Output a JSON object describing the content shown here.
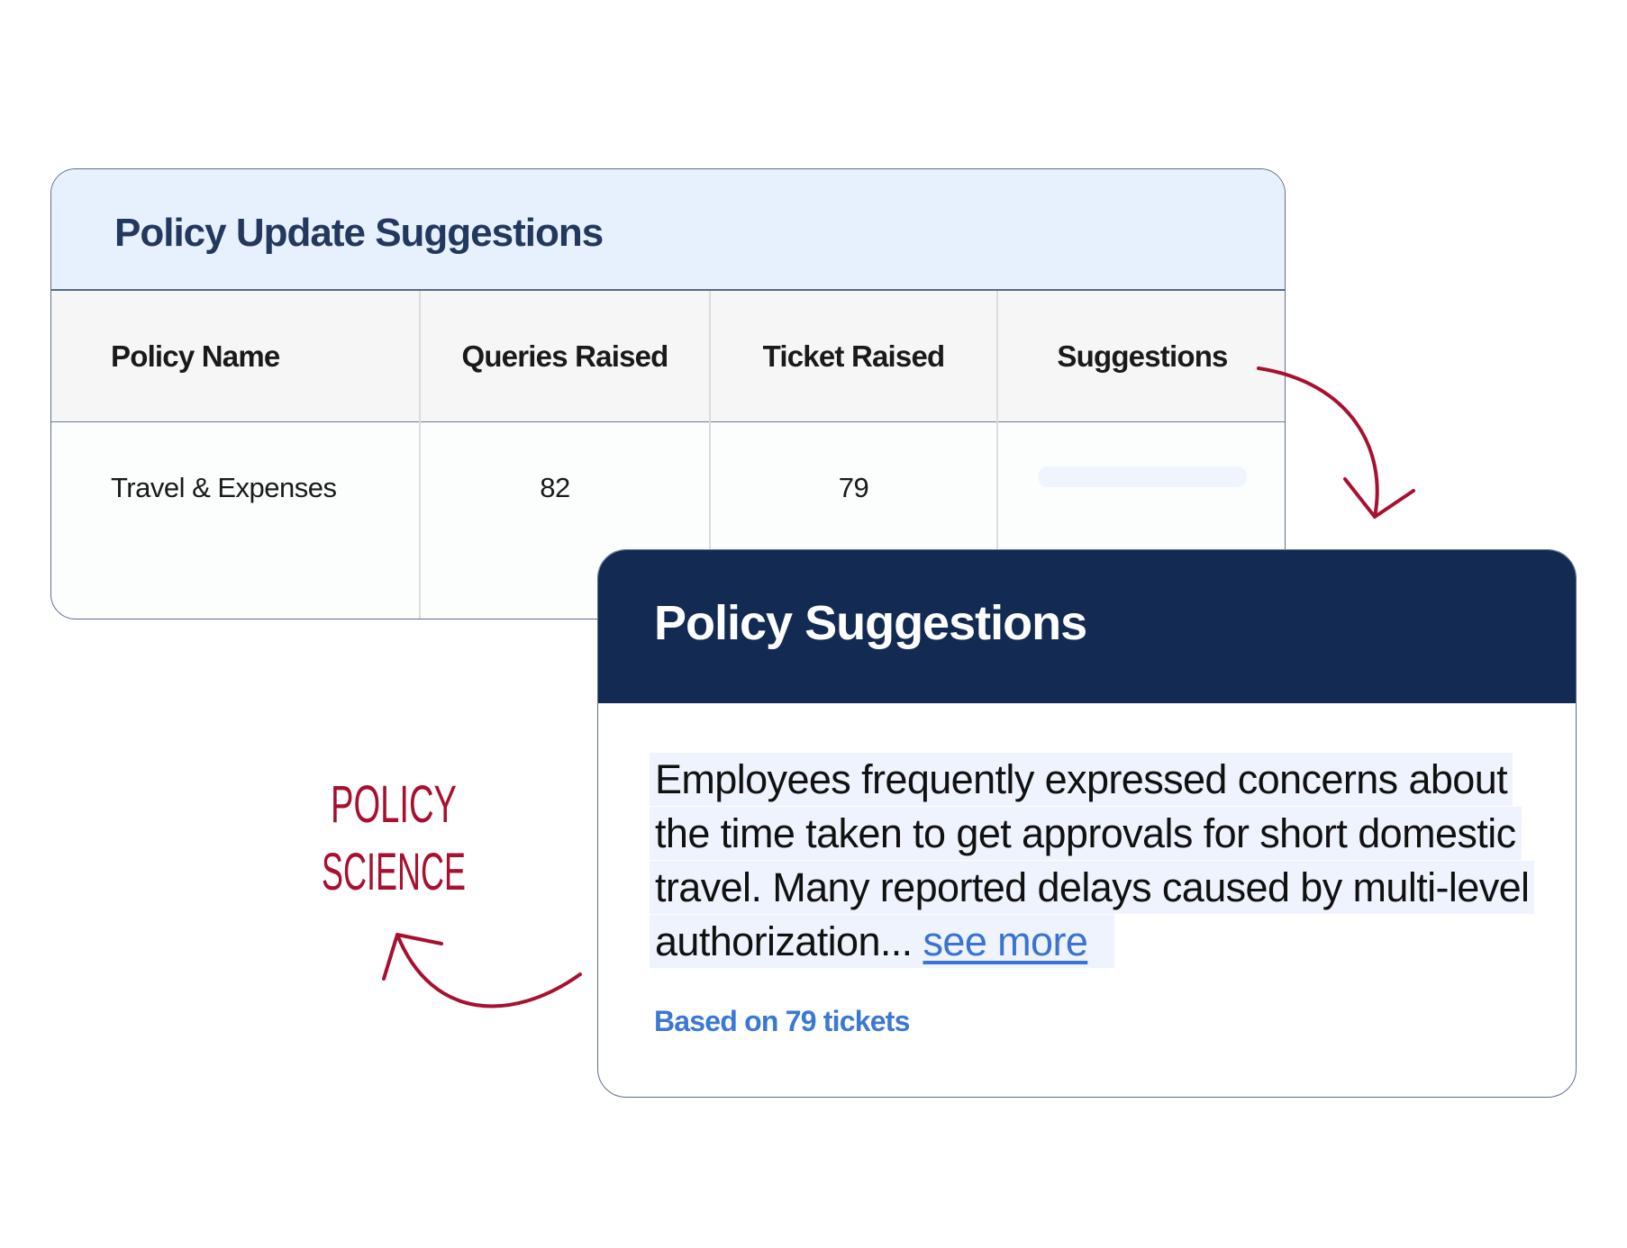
{
  "policy_table": {
    "title": "Policy Update Suggestions",
    "columns": [
      "Policy Name",
      "Queries Raised",
      "Ticket Raised",
      "Suggestions"
    ],
    "rows": [
      {
        "policy_name": "Travel & Expenses",
        "queries_raised": "82",
        "ticket_raised": "79",
        "suggestions": ""
      }
    ]
  },
  "suggestion_card": {
    "title": "Policy Suggestions",
    "body": "Employees frequently expressed concerns about the time taken to get approvals for short domestic travel. Many reported delays caused by multi-level authorization...",
    "see_more": "see more",
    "footer": "Based on 79 tickets"
  },
  "annotation": {
    "line1": "POLICY",
    "line2": "SCIENCE"
  },
  "colors": {
    "header_navy": "#132b52",
    "accent_blue": "#3a78d4",
    "annotation_red": "#a8102f",
    "table_header_bg": "#e7f0fd"
  }
}
